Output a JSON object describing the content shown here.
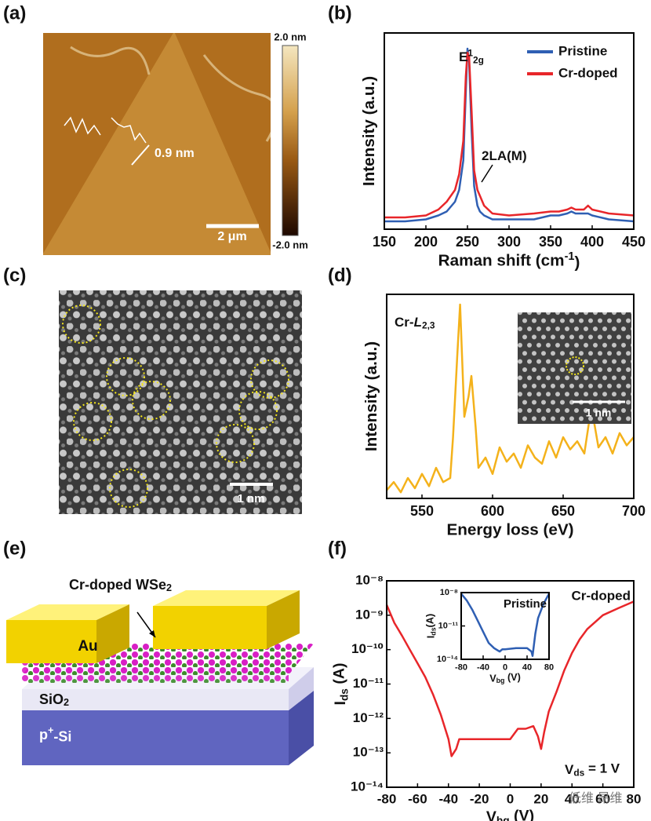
{
  "panel_labels": [
    "(a)",
    "(b)",
    "(c)",
    "(d)",
    "(e)",
    "(f)"
  ],
  "afm": {
    "colorbar_max": "2.0 nm",
    "colorbar_min": "-2.0 nm",
    "step_height": "0.9 nm",
    "scale_bar": "2 μm"
  },
  "stem": {
    "scale_bar": "1 nm"
  },
  "schematic": {
    "title": [
      {
        "text": "Cr-doped WSe"
      },
      {
        "text": "2",
        "sub": true
      }
    ],
    "electrode": "Au",
    "oxide": [
      {
        "text": "SiO"
      },
      {
        "text": "2",
        "sub": true
      }
    ],
    "substrate": [
      {
        "text": "p"
      },
      {
        "text": "+",
        "sup": true
      },
      {
        "text": "-Si"
      }
    ]
  },
  "watermark": "低维 昂维",
  "chart_data": [
    {
      "type": "line",
      "x_label": [
        {
          "text": "Raman shift (cm"
        },
        {
          "text": "-1",
          "sup": true
        },
        {
          "text": ")"
        }
      ],
      "y_label": [
        {
          "text": "Intensity (a.u.)"
        }
      ],
      "x": [
        150,
        175,
        200,
        215,
        225,
        235,
        240,
        245,
        248,
        250,
        252,
        255,
        258,
        262,
        265,
        270,
        280,
        300,
        330,
        350,
        360,
        370,
        375,
        380,
        390,
        395,
        400,
        420,
        450
      ],
      "series": [
        {
          "name": "Pristine",
          "color": "#2f5fb3",
          "values": [
            0.04,
            0.04,
            0.05,
            0.07,
            0.09,
            0.14,
            0.2,
            0.35,
            0.7,
            0.92,
            0.85,
            0.5,
            0.22,
            0.12,
            0.09,
            0.07,
            0.05,
            0.05,
            0.05,
            0.07,
            0.07,
            0.08,
            0.09,
            0.08,
            0.08,
            0.08,
            0.07,
            0.05,
            0.04
          ]
        },
        {
          "name": "Cr-doped",
          "color": "#e8262a",
          "values": [
            0.06,
            0.06,
            0.07,
            0.1,
            0.14,
            0.2,
            0.28,
            0.45,
            0.78,
            0.9,
            0.88,
            0.6,
            0.3,
            0.2,
            0.17,
            0.12,
            0.08,
            0.07,
            0.08,
            0.09,
            0.09,
            0.1,
            0.11,
            0.1,
            0.1,
            0.12,
            0.1,
            0.08,
            0.07
          ]
        }
      ],
      "xlim": [
        150,
        450
      ],
      "xticks": [
        150,
        200,
        250,
        300,
        350,
        400,
        450
      ],
      "ylim": [
        0,
        1
      ],
      "legend": "upper right",
      "annotations": [
        [
          {
            "text": "E"
          },
          {
            "text": "1",
            "sup": true
          },
          {
            "text": "2g",
            "sub": true
          }
        ],
        [
          {
            "text": "2LA(M)"
          }
        ]
      ]
    },
    {
      "type": "line",
      "x_label": [
        {
          "text": "Energy loss (eV)"
        }
      ],
      "y_label": [
        {
          "text": "Intensity (a.u.)"
        }
      ],
      "x": [
        525,
        530,
        535,
        540,
        545,
        550,
        555,
        560,
        565,
        570,
        572,
        575,
        577,
        580,
        583,
        585,
        588,
        590,
        595,
        600,
        605,
        610,
        615,
        620,
        625,
        630,
        635,
        640,
        645,
        650,
        655,
        660,
        665,
        670,
        675,
        680,
        685,
        690,
        695,
        700
      ],
      "series": [
        {
          "name": null,
          "color": "#f4b21b",
          "values": [
            0.04,
            0.08,
            0.03,
            0.1,
            0.05,
            0.12,
            0.06,
            0.15,
            0.08,
            0.1,
            0.3,
            0.7,
            0.95,
            0.4,
            0.5,
            0.6,
            0.35,
            0.15,
            0.2,
            0.12,
            0.25,
            0.18,
            0.22,
            0.15,
            0.26,
            0.2,
            0.17,
            0.28,
            0.2,
            0.3,
            0.24,
            0.28,
            0.22,
            0.45,
            0.25,
            0.3,
            0.22,
            0.32,
            0.26,
            0.3
          ]
        }
      ],
      "xlim": [
        525,
        700
      ],
      "xticks": [
        550,
        600,
        650,
        700
      ],
      "ylim": [
        0,
        1
      ],
      "annotations": [
        [
          {
            "text": "Cr-"
          },
          {
            "text": "L",
            "italic": true
          },
          {
            "text": "2,3",
            "sub": true
          }
        ]
      ],
      "inset": {
        "scale_bar": "1 nm"
      }
    },
    {
      "type": "line",
      "log_y": true,
      "x_label": [
        {
          "text": "V"
        },
        {
          "text": "bg",
          "sub": true
        },
        {
          "text": " (V)"
        }
      ],
      "y_label": [
        {
          "text": "I"
        },
        {
          "text": "ds",
          "sub": true
        },
        {
          "text": " (A)"
        }
      ],
      "x": [
        -80,
        -75,
        -70,
        -65,
        -60,
        -55,
        -50,
        -45,
        -40,
        -38,
        -35,
        -33,
        -30,
        -20,
        -10,
        0,
        5,
        10,
        15,
        18,
        20,
        22,
        25,
        30,
        35,
        40,
        45,
        50,
        60,
        70,
        80
      ],
      "series": [
        {
          "name": "Cr-doped",
          "color": "#e8262a",
          "values": [
            2e-09,
            6e-10,
            2.5e-10,
            1e-10,
            4e-11,
            1.6e-11,
            5e-12,
            1.3e-12,
            2.5e-13,
            8e-14,
            1.3e-13,
            2.5e-13,
            2.5e-13,
            2.5e-13,
            2.5e-13,
            2.5e-13,
            5e-13,
            5e-13,
            6e-13,
            3e-13,
            1.3e-13,
            4e-13,
            1.6e-12,
            6e-12,
            2.5e-11,
            8e-11,
            2e-10,
            4e-10,
            1e-09,
            1.6e-09,
            2.5e-09
          ]
        }
      ],
      "xlim": [
        -80,
        80
      ],
      "xticks": [
        -80,
        -60,
        -40,
        -20,
        0,
        20,
        40,
        60,
        80
      ],
      "ylim": [
        1e-14,
        1e-08
      ],
      "yticks": [
        {
          "value": 1e-14,
          "label": "10⁻¹⁴"
        },
        {
          "value": 1e-13,
          "label": "10⁻¹³"
        },
        {
          "value": 1e-12,
          "label": "10⁻¹²"
        },
        {
          "value": 1e-11,
          "label": "10⁻¹¹"
        },
        {
          "value": 1e-10,
          "label": "10⁻¹⁰"
        },
        {
          "value": 1e-09,
          "label": "10⁻⁹"
        },
        {
          "value": 1e-08,
          "label": "10⁻⁸"
        }
      ],
      "annotations": [
        [
          {
            "text": "V"
          },
          {
            "text": "ds",
            "sub": true
          },
          {
            "text": " = 1 V"
          }
        ]
      ],
      "inset": {
        "type": "line",
        "log_y": true,
        "x_label": [
          {
            "text": "V"
          },
          {
            "text": "bg",
            "sub": true
          },
          {
            "text": " (V)"
          }
        ],
        "y_label": [
          {
            "text": "I"
          },
          {
            "text": "ds",
            "sub": true
          },
          {
            "text": "(A)"
          }
        ],
        "x": [
          -80,
          -70,
          -60,
          -50,
          -40,
          -30,
          -20,
          -10,
          -5,
          0,
          20,
          40,
          48,
          50,
          55,
          60,
          70,
          80
        ],
        "series": [
          {
            "name": "Pristine",
            "color": "#2f5fb3",
            "values": [
              8e-09,
              2e-09,
              3e-10,
              3e-11,
              3e-12,
              3e-13,
              1e-13,
              5e-14,
              8e-14,
              8e-14,
              1e-13,
              1e-13,
              5e-14,
              2e-14,
              2e-12,
              5e-11,
              1e-09,
              8e-09
            ]
          }
        ],
        "xlim": [
          -80,
          80
        ],
        "xticks": [
          -80,
          -40,
          0,
          40,
          80
        ],
        "ylim": [
          1e-14,
          1e-08
        ],
        "yticks": [
          {
            "value": 1e-14,
            "label": "10⁻¹⁴"
          },
          {
            "value": 1e-11,
            "label": "10⁻¹¹"
          },
          {
            "value": 1e-08,
            "label": "10⁻⁸"
          }
        ]
      }
    }
  ]
}
